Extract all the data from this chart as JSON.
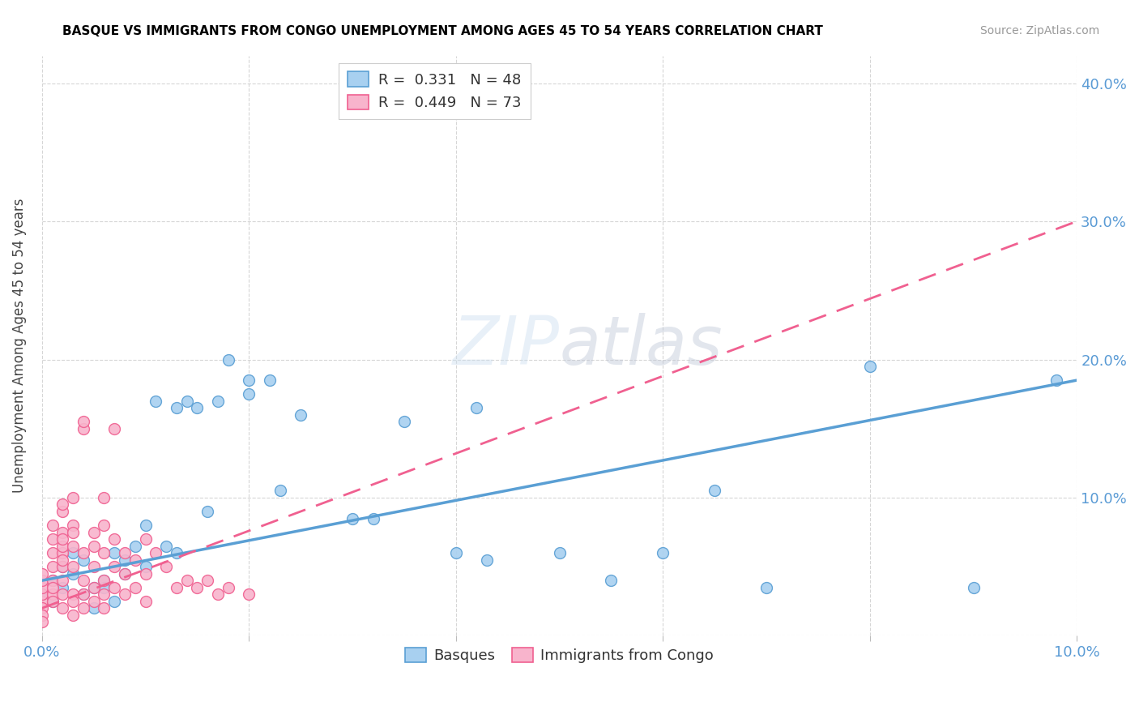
{
  "title": "BASQUE VS IMMIGRANTS FROM CONGO UNEMPLOYMENT AMONG AGES 45 TO 54 YEARS CORRELATION CHART",
  "source": "Source: ZipAtlas.com",
  "ylabel": "Unemployment Among Ages 45 to 54 years",
  "xlim": [
    0.0,
    0.1
  ],
  "ylim": [
    0.0,
    0.42
  ],
  "x_ticks": [
    0.0,
    0.02,
    0.04,
    0.06,
    0.08,
    0.1
  ],
  "y_ticks": [
    0.0,
    0.1,
    0.2,
    0.3,
    0.4
  ],
  "color_basque_fill": "#A8D0F0",
  "color_basque_edge": "#5A9FD4",
  "color_congo_fill": "#F8B4CC",
  "color_congo_edge": "#F06090",
  "color_line_basque": "#5A9FD4",
  "color_line_congo": "#F06090",
  "watermark": "ZIPatlas",
  "basque_R": 0.331,
  "basque_N": 48,
  "congo_R": 0.449,
  "congo_N": 73,
  "basque_points": [
    [
      0.0,
      0.03
    ],
    [
      0.001,
      0.025
    ],
    [
      0.001,
      0.04
    ],
    [
      0.002,
      0.035
    ],
    [
      0.002,
      0.05
    ],
    [
      0.003,
      0.06
    ],
    [
      0.003,
      0.045
    ],
    [
      0.004,
      0.03
    ],
    [
      0.004,
      0.055
    ],
    [
      0.005,
      0.035
    ],
    [
      0.005,
      0.02
    ],
    [
      0.006,
      0.04
    ],
    [
      0.006,
      0.035
    ],
    [
      0.007,
      0.06
    ],
    [
      0.007,
      0.025
    ],
    [
      0.008,
      0.055
    ],
    [
      0.008,
      0.045
    ],
    [
      0.009,
      0.065
    ],
    [
      0.01,
      0.05
    ],
    [
      0.01,
      0.08
    ],
    [
      0.011,
      0.17
    ],
    [
      0.012,
      0.065
    ],
    [
      0.013,
      0.06
    ],
    [
      0.013,
      0.165
    ],
    [
      0.014,
      0.17
    ],
    [
      0.015,
      0.165
    ],
    [
      0.016,
      0.09
    ],
    [
      0.017,
      0.17
    ],
    [
      0.018,
      0.2
    ],
    [
      0.02,
      0.175
    ],
    [
      0.02,
      0.185
    ],
    [
      0.022,
      0.185
    ],
    [
      0.023,
      0.105
    ],
    [
      0.025,
      0.16
    ],
    [
      0.03,
      0.085
    ],
    [
      0.032,
      0.085
    ],
    [
      0.035,
      0.155
    ],
    [
      0.04,
      0.06
    ],
    [
      0.042,
      0.165
    ],
    [
      0.043,
      0.055
    ],
    [
      0.05,
      0.06
    ],
    [
      0.055,
      0.04
    ],
    [
      0.06,
      0.06
    ],
    [
      0.065,
      0.105
    ],
    [
      0.07,
      0.035
    ],
    [
      0.08,
      0.195
    ],
    [
      0.09,
      0.035
    ],
    [
      0.098,
      0.185
    ]
  ],
  "congo_points": [
    [
      0.0,
      0.025
    ],
    [
      0.0,
      0.03
    ],
    [
      0.0,
      0.035
    ],
    [
      0.0,
      0.04
    ],
    [
      0.0,
      0.02
    ],
    [
      0.0,
      0.015
    ],
    [
      0.0,
      0.045
    ],
    [
      0.0,
      0.01
    ],
    [
      0.001,
      0.07
    ],
    [
      0.001,
      0.08
    ],
    [
      0.001,
      0.06
    ],
    [
      0.001,
      0.05
    ],
    [
      0.001,
      0.04
    ],
    [
      0.001,
      0.03
    ],
    [
      0.001,
      0.025
    ],
    [
      0.001,
      0.035
    ],
    [
      0.002,
      0.09
    ],
    [
      0.002,
      0.075
    ],
    [
      0.002,
      0.095
    ],
    [
      0.002,
      0.06
    ],
    [
      0.002,
      0.05
    ],
    [
      0.002,
      0.065
    ],
    [
      0.002,
      0.07
    ],
    [
      0.002,
      0.055
    ],
    [
      0.002,
      0.04
    ],
    [
      0.002,
      0.03
    ],
    [
      0.002,
      0.02
    ],
    [
      0.003,
      0.08
    ],
    [
      0.003,
      0.065
    ],
    [
      0.003,
      0.1
    ],
    [
      0.003,
      0.075
    ],
    [
      0.003,
      0.05
    ],
    [
      0.003,
      0.03
    ],
    [
      0.003,
      0.025
    ],
    [
      0.003,
      0.015
    ],
    [
      0.004,
      0.15
    ],
    [
      0.004,
      0.155
    ],
    [
      0.004,
      0.06
    ],
    [
      0.004,
      0.04
    ],
    [
      0.004,
      0.03
    ],
    [
      0.004,
      0.02
    ],
    [
      0.005,
      0.075
    ],
    [
      0.005,
      0.065
    ],
    [
      0.005,
      0.05
    ],
    [
      0.005,
      0.035
    ],
    [
      0.005,
      0.025
    ],
    [
      0.006,
      0.1
    ],
    [
      0.006,
      0.08
    ],
    [
      0.006,
      0.06
    ],
    [
      0.006,
      0.04
    ],
    [
      0.006,
      0.03
    ],
    [
      0.006,
      0.02
    ],
    [
      0.007,
      0.15
    ],
    [
      0.007,
      0.07
    ],
    [
      0.007,
      0.05
    ],
    [
      0.007,
      0.035
    ],
    [
      0.008,
      0.06
    ],
    [
      0.008,
      0.045
    ],
    [
      0.008,
      0.03
    ],
    [
      0.009,
      0.055
    ],
    [
      0.009,
      0.035
    ],
    [
      0.01,
      0.07
    ],
    [
      0.01,
      0.045
    ],
    [
      0.01,
      0.025
    ],
    [
      0.011,
      0.06
    ],
    [
      0.012,
      0.05
    ],
    [
      0.013,
      0.035
    ],
    [
      0.014,
      0.04
    ],
    [
      0.015,
      0.035
    ],
    [
      0.016,
      0.04
    ],
    [
      0.017,
      0.03
    ],
    [
      0.018,
      0.035
    ],
    [
      0.02,
      0.03
    ]
  ]
}
